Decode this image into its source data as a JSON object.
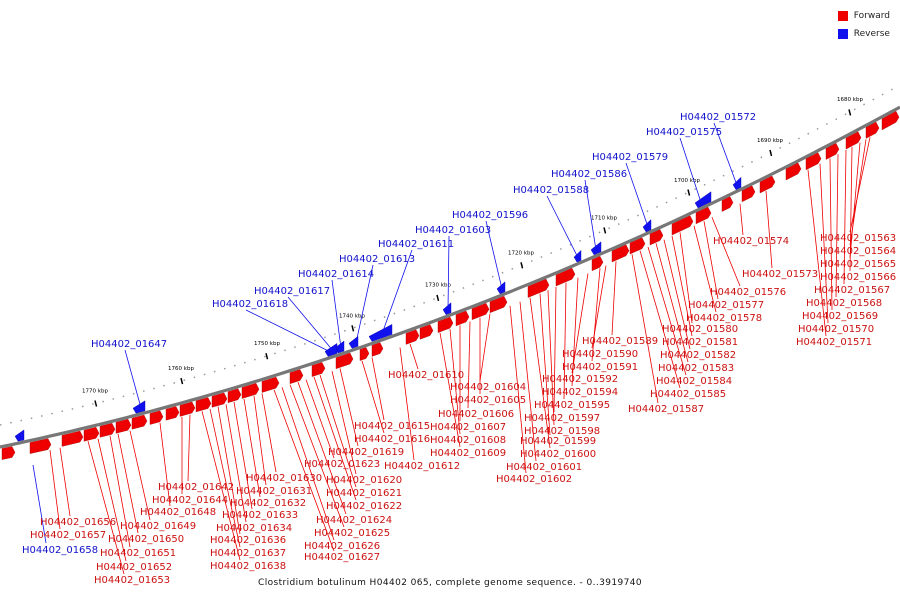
{
  "legend": [
    {
      "label": "Forward",
      "color": "#ee0000"
    },
    {
      "label": "Reverse",
      "color": "#1111ee"
    }
  ],
  "caption": "Clostridium botulinum H04402 065, complete genome sequence. - 0..3919740",
  "ticks": [
    "1680 kbp",
    "1690 kbp",
    "1700 kbp",
    "1710 kbp",
    "1720 kbp",
    "1730 kbp",
    "1740 kbp",
    "1750 kbp",
    "1760 kbp",
    "1770 kbp"
  ],
  "reverse_labels": [
    "H04402_01572",
    "H04402_01575",
    "H04402_01579",
    "H04402_01586",
    "H04402_01588",
    "H04402_01596",
    "H04402_01603",
    "H04402_01611",
    "H04402_01613",
    "H04402_01614",
    "H04402_01617",
    "H04402_01618",
    "H04402_01647",
    "H04402_01658"
  ],
  "forward_labels": [
    "H04402_01563",
    "H04402_01564",
    "H04402_01565",
    "H04402_01566",
    "H04402_01567",
    "H04402_01568",
    "H04402_01569",
    "H04402_01570",
    "H04402_01571",
    "H04402_01573",
    "H04402_01574",
    "H04402_01576",
    "H04402_01577",
    "H04402_01578",
    "H04402_01580",
    "H04402_01581",
    "H04402_01582",
    "H04402_01583",
    "H04402_01584",
    "H04402_01585",
    "H04402_01587",
    "H04402_01589",
    "H04402_01590",
    "H04402_01591",
    "H04402_01592",
    "H04402_01594",
    "H04402_01595",
    "H04402_01597",
    "H04402_01598",
    "H04402_01599",
    "H04402_01600",
    "H04402_01601",
    "H04402_01602",
    "H04402_01604",
    "H04402_01605",
    "H04402_01606",
    "H04402_01607",
    "H04402_01608",
    "H04402_01609",
    "H04402_01610",
    "H04402_01612",
    "H04402_01615",
    "H04402_01616",
    "H04402_01619",
    "H04402_01620",
    "H04402_01621",
    "H04402_01622",
    "H04402_01623",
    "H04402_01624",
    "H04402_01625",
    "H04402_01626",
    "H04402_01627",
    "H04402_01630",
    "H04402_01631",
    "H04402_01632",
    "H04402_01633",
    "H04402_01634",
    "H04402_01636",
    "H04402_01637",
    "H04402_01638",
    "H04402_01642",
    "H04402_01644",
    "H04402_01648",
    "H04402_01649",
    "H04402_01650",
    "H04402_01651",
    "H04402_01652",
    "H04402_01653",
    "H04402_01656",
    "H04402_01657"
  ]
}
